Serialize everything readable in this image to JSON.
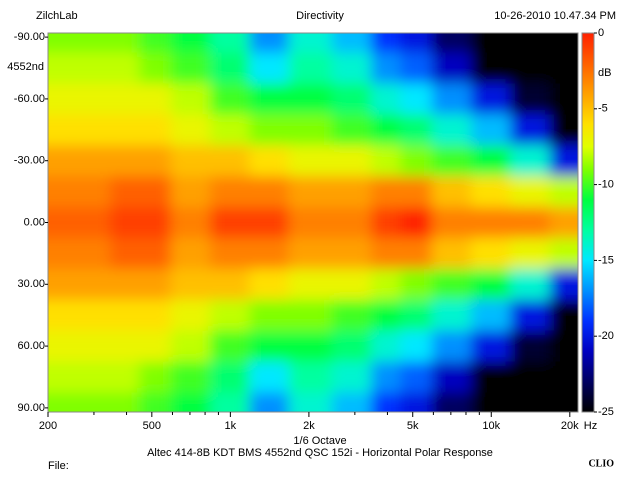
{
  "chart_data": {
    "type": "heatmap",
    "header_left": "ZilchLab",
    "title": "Directivity",
    "timestamp": "10-26-2010 10.47.34 PM",
    "y_label": "4552nd",
    "x_label": "1/6 Octave",
    "subtitle": "Altec 414-8B KDT BMS 4552nd QSC 152i - Horizontal Polar Response",
    "footer_left": "File:",
    "brand": "CLIO",
    "x_unit": "Hz",
    "z_label": "dB",
    "log_x": true,
    "x": [
      200,
      300,
      400,
      500,
      700,
      1000,
      1400,
      2000,
      3000,
      4000,
      5000,
      7000,
      10000,
      14000,
      20000
    ],
    "y": [
      -90,
      -75,
      -60,
      -45,
      -30,
      -15,
      0,
      15,
      30,
      45,
      60,
      75,
      90
    ],
    "z": [
      [
        -9,
        -9,
        -9,
        -10,
        -11,
        -13,
        -17,
        -14,
        -16,
        -19,
        -20,
        -23,
        -27,
        -27,
        -27
      ],
      [
        -8,
        -8,
        -8,
        -9,
        -10,
        -12,
        -15,
        -13,
        -14,
        -17,
        -18,
        -21,
        -25,
        -27,
        -27
      ],
      [
        -7,
        -7,
        -7,
        -7,
        -8,
        -10,
        -11,
        -11,
        -12,
        -14,
        -15,
        -17,
        -20,
        -24,
        -27
      ],
      [
        -6,
        -6,
        -6,
        -6,
        -7,
        -8,
        -9,
        -9,
        -10,
        -11,
        -12,
        -14,
        -16,
        -20,
        -26
      ],
      [
        -4,
        -4,
        -4,
        -4,
        -5,
        -5,
        -6,
        -7,
        -7,
        -8,
        -9,
        -10,
        -11,
        -14,
        -20
      ],
      [
        -3,
        -3,
        -2,
        -2,
        -4,
        -3,
        -3,
        -4,
        -4,
        -3,
        -3,
        -5,
        -6,
        -7,
        -8
      ],
      [
        -2,
        -2,
        -1,
        -1,
        -3,
        -1,
        -1,
        -3,
        -3,
        -1,
        0,
        -3,
        -3,
        -3,
        -4
      ],
      [
        -3,
        -3,
        -2,
        -2,
        -4,
        -3,
        -3,
        -4,
        -4,
        -3,
        -3,
        -5,
        -6,
        -7,
        -8
      ],
      [
        -4,
        -4,
        -4,
        -4,
        -5,
        -5,
        -6,
        -7,
        -7,
        -8,
        -9,
        -10,
        -11,
        -14,
        -20
      ],
      [
        -6,
        -6,
        -6,
        -6,
        -7,
        -8,
        -9,
        -9,
        -10,
        -11,
        -12,
        -14,
        -16,
        -20,
        -26
      ],
      [
        -7,
        -7,
        -7,
        -7,
        -8,
        -10,
        -11,
        -11,
        -12,
        -14,
        -15,
        -17,
        -20,
        -24,
        -27
      ],
      [
        -8,
        -8,
        -8,
        -9,
        -10,
        -12,
        -15,
        -13,
        -14,
        -17,
        -18,
        -21,
        -25,
        -27,
        -27
      ],
      [
        -9,
        -9,
        -9,
        -10,
        -11,
        -13,
        -17,
        -14,
        -16,
        -19,
        -20,
        -23,
        -27,
        -27,
        -27
      ]
    ],
    "xlim": [
      200,
      21500
    ],
    "xticks": [
      200,
      500,
      {
        "value": 1000,
        "label": "1k"
      },
      {
        "value": 2000,
        "label": "2k"
      },
      {
        "value": 5000,
        "label": "5k"
      },
      {
        "value": 10000,
        "label": "10k"
      },
      {
        "value": 20000,
        "label": "20k"
      }
    ],
    "xminorticks": [
      300,
      400,
      600,
      700,
      800,
      900,
      3000,
      4000,
      6000,
      7000,
      8000,
      9000
    ],
    "ylim": [
      -92,
      92
    ],
    "yticks": [
      {
        "value": -90,
        "label": "-90.00"
      },
      {
        "value": -60,
        "label": "-60.00"
      },
      {
        "value": -30,
        "label": "-30.00"
      },
      {
        "value": 0,
        "label": "0.00"
      },
      {
        "value": 30,
        "label": "30.00"
      },
      {
        "value": 60,
        "label": "60.00"
      },
      {
        "value": 90,
        "label": "90.00"
      }
    ],
    "zlim": [
      -25,
      0
    ],
    "zticks": [
      0,
      -5,
      -10,
      -15,
      -20,
      -25
    ],
    "colorscale": [
      {
        "value": 0,
        "color": "#ff2000"
      },
      {
        "value": -2,
        "color": "#ff6000"
      },
      {
        "value": -4,
        "color": "#ffa000"
      },
      {
        "value": -6,
        "color": "#ffe000"
      },
      {
        "value": -7.5,
        "color": "#e0ff00"
      },
      {
        "value": -9,
        "color": "#80ff00"
      },
      {
        "value": -11,
        "color": "#00ff40"
      },
      {
        "value": -13,
        "color": "#00ffa0"
      },
      {
        "value": -15,
        "color": "#00e8ff"
      },
      {
        "value": -17,
        "color": "#0090ff"
      },
      {
        "value": -19,
        "color": "#0030ff"
      },
      {
        "value": -21,
        "color": "#0000c0"
      },
      {
        "value": -23,
        "color": "#000060"
      },
      {
        "value": -25,
        "color": "#000000"
      }
    ]
  }
}
